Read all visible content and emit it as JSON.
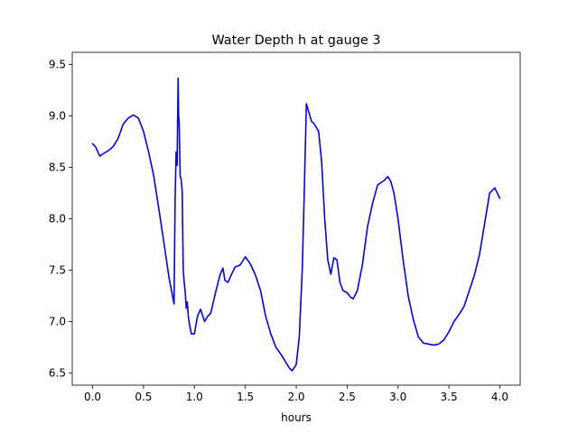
{
  "chart_data": {
    "type": "line",
    "title": "Water Depth h at gauge 3",
    "xlabel": "hours",
    "ylabel": "",
    "xlim": [
      -0.2,
      4.2
    ],
    "ylim": [
      6.38,
      9.62
    ],
    "xticks": [
      0.0,
      0.5,
      1.0,
      1.5,
      2.0,
      2.5,
      3.0,
      3.5,
      4.0
    ],
    "xtick_labels": [
      "0.0",
      "0.5",
      "1.0",
      "1.5",
      "2.0",
      "2.5",
      "3.0",
      "3.5",
      "4.0"
    ],
    "yticks": [
      6.5,
      7.0,
      7.5,
      8.0,
      8.5,
      9.0,
      9.5
    ],
    "ytick_labels": [
      "6.5",
      "7.0",
      "7.5",
      "8.0",
      "8.5",
      "9.0",
      "9.5"
    ],
    "grid": false,
    "series": [
      {
        "color": "#0000ff",
        "x": [
          0.0,
          0.03,
          0.07,
          0.1,
          0.15,
          0.2,
          0.25,
          0.3,
          0.35,
          0.4,
          0.45,
          0.5,
          0.55,
          0.6,
          0.65,
          0.7,
          0.75,
          0.8,
          0.81,
          0.82,
          0.83,
          0.84,
          0.845,
          0.85,
          0.86,
          0.87,
          0.88,
          0.89,
          0.9,
          0.91,
          0.92,
          0.93,
          0.94,
          0.95,
          0.97,
          1.0,
          1.03,
          1.06,
          1.1,
          1.13,
          1.16,
          1.2,
          1.25,
          1.28,
          1.3,
          1.33,
          1.36,
          1.4,
          1.45,
          1.5,
          1.55,
          1.6,
          1.65,
          1.7,
          1.75,
          1.8,
          1.85,
          1.9,
          1.93,
          1.96,
          2.0,
          2.03,
          2.06,
          2.08,
          2.1,
          2.12,
          2.15,
          2.18,
          2.22,
          2.25,
          2.28,
          2.31,
          2.34,
          2.37,
          2.4,
          2.43,
          2.46,
          2.5,
          2.53,
          2.56,
          2.6,
          2.65,
          2.7,
          2.75,
          2.8,
          2.83,
          2.86,
          2.9,
          2.93,
          2.96,
          3.0,
          3.05,
          3.1,
          3.15,
          3.2,
          3.25,
          3.3,
          3.35,
          3.4,
          3.45,
          3.5,
          3.55,
          3.6,
          3.65,
          3.7,
          3.75,
          3.8,
          3.85,
          3.9,
          3.95,
          4.0
        ],
        "y": [
          8.73,
          8.7,
          8.61,
          8.63,
          8.66,
          8.7,
          8.78,
          8.92,
          8.98,
          9.01,
          8.98,
          8.85,
          8.65,
          8.42,
          8.1,
          7.77,
          7.43,
          7.17,
          8.15,
          8.65,
          8.52,
          9.37,
          9.0,
          8.95,
          8.42,
          8.38,
          8.27,
          7.5,
          7.38,
          7.28,
          7.13,
          7.19,
          7.05,
          6.98,
          6.88,
          6.88,
          7.05,
          7.12,
          7.0,
          7.05,
          7.08,
          7.25,
          7.45,
          7.52,
          7.4,
          7.38,
          7.45,
          7.53,
          7.55,
          7.63,
          7.56,
          7.45,
          7.3,
          7.05,
          6.88,
          6.75,
          6.68,
          6.6,
          6.55,
          6.52,
          6.58,
          6.85,
          7.52,
          8.3,
          9.12,
          9.05,
          8.95,
          8.92,
          8.85,
          8.55,
          8.0,
          7.6,
          7.46,
          7.62,
          7.6,
          7.38,
          7.3,
          7.28,
          7.24,
          7.22,
          7.3,
          7.55,
          7.92,
          8.15,
          8.33,
          8.35,
          8.37,
          8.41,
          8.36,
          8.25,
          8.0,
          7.6,
          7.25,
          7.02,
          6.85,
          6.79,
          6.78,
          6.77,
          6.78,
          6.82,
          6.9,
          7.0,
          7.07,
          7.15,
          7.3,
          7.45,
          7.65,
          7.95,
          8.25,
          8.3,
          8.2
        ]
      }
    ]
  }
}
